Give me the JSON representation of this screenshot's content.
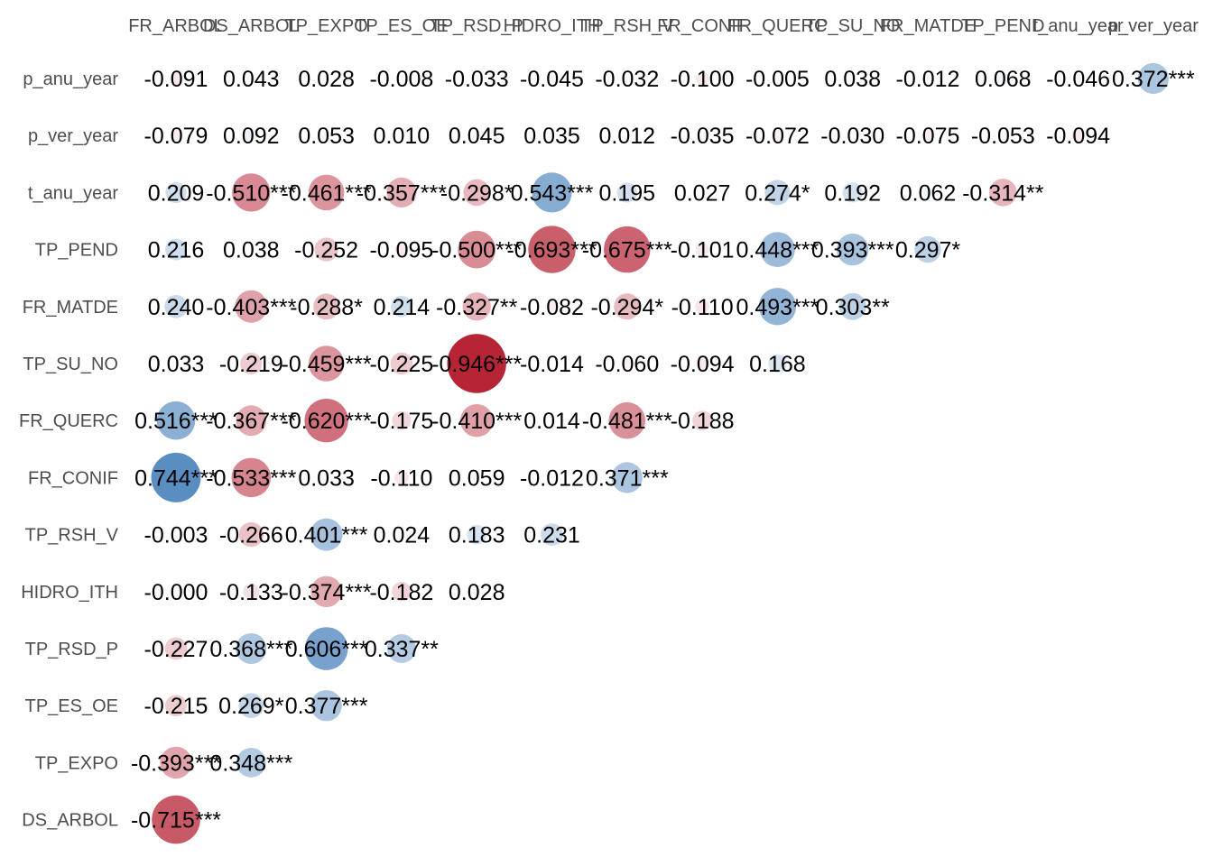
{
  "chart_data": {
    "type": "heatmap",
    "title": "",
    "xlabel": "",
    "ylabel": "",
    "columns": [
      "FR_ARBOL",
      "DS_ARBOL",
      "TP_EXPO",
      "TP_ES_OE",
      "TP_RSD_P",
      "HIDRO_ITH",
      "TP_RSH_V",
      "FR_CONIF",
      "FR_QUERC",
      "TP_SU_NO",
      "FR_MATDE",
      "TP_PEND",
      "t_anu_year",
      "p_ver_year"
    ],
    "rows": [
      "p_anu_year",
      "p_ver_year",
      "t_anu_year",
      "TP_PEND",
      "FR_MATDE",
      "TP_SU_NO",
      "FR_QUERC",
      "FR_CONIF",
      "TP_RSH_V",
      "HIDRO_ITH",
      "TP_RSD_P",
      "TP_ES_OE",
      "TP_EXPO",
      "DS_ARBOL"
    ],
    "value_range": [
      -1,
      1
    ],
    "color_scale": {
      "negative": "#b2182b",
      "zero": "#ffffff",
      "positive": "#2166ac"
    },
    "labels": [
      [
        "-0.091",
        "0.043",
        "0.028",
        "-0.008",
        "-0.033",
        "-0.045",
        "-0.032",
        "-0.100",
        "-0.005",
        "0.038",
        "-0.012",
        "0.068",
        "-0.046",
        "0.372***"
      ],
      [
        "-0.079",
        "0.092",
        "0.053",
        "0.010",
        "0.045",
        "0.035",
        "0.012",
        "-0.035",
        "-0.072",
        "-0.030",
        "-0.075",
        "-0.053",
        "-0.094"
      ],
      [
        "0.209",
        "-0.510***",
        "-0.461***",
        "-0.357***",
        "-0.298*",
        "0.543***",
        "0.195",
        "0.027",
        "0.274*",
        "0.192",
        "0.062",
        "-0.314**"
      ],
      [
        "0.216",
        "0.038",
        "-0.252",
        "-0.095",
        "-0.500***",
        "-0.693***",
        "-0.675***",
        "-0.101",
        "0.448***",
        "0.393***",
        "0.297*"
      ],
      [
        "0.240",
        "-0.403***",
        "-0.288*",
        "0.214",
        "-0.327**",
        "-0.082",
        "-0.294*",
        "-0.110",
        "0.493***",
        "0.303**"
      ],
      [
        "0.033",
        "-0.219",
        "-0.459***",
        "-0.225",
        "-0.946***",
        "-0.014",
        "-0.060",
        "-0.094",
        "0.168"
      ],
      [
        "0.516***",
        "-0.367***",
        "-0.620***",
        "-0.175",
        "-0.410***",
        "0.014",
        "-0.481***",
        "-0.188"
      ],
      [
        "0.744***",
        "-0.533***",
        "0.033",
        "-0.110",
        "0.059",
        "-0.012",
        "0.371***"
      ],
      [
        "-0.003",
        "-0.266",
        "0.401***",
        "0.024",
        "0.183",
        "0.231"
      ],
      [
        "-0.000",
        "-0.133",
        "-0.374***",
        "-0.182",
        "0.028"
      ],
      [
        "-0.227",
        "0.368***",
        "0.606***",
        "0.337**"
      ],
      [
        "-0.215",
        "0.269*",
        "0.377***"
      ],
      [
        "-0.393***",
        "0.348***"
      ],
      [
        "-0.715***"
      ]
    ]
  }
}
